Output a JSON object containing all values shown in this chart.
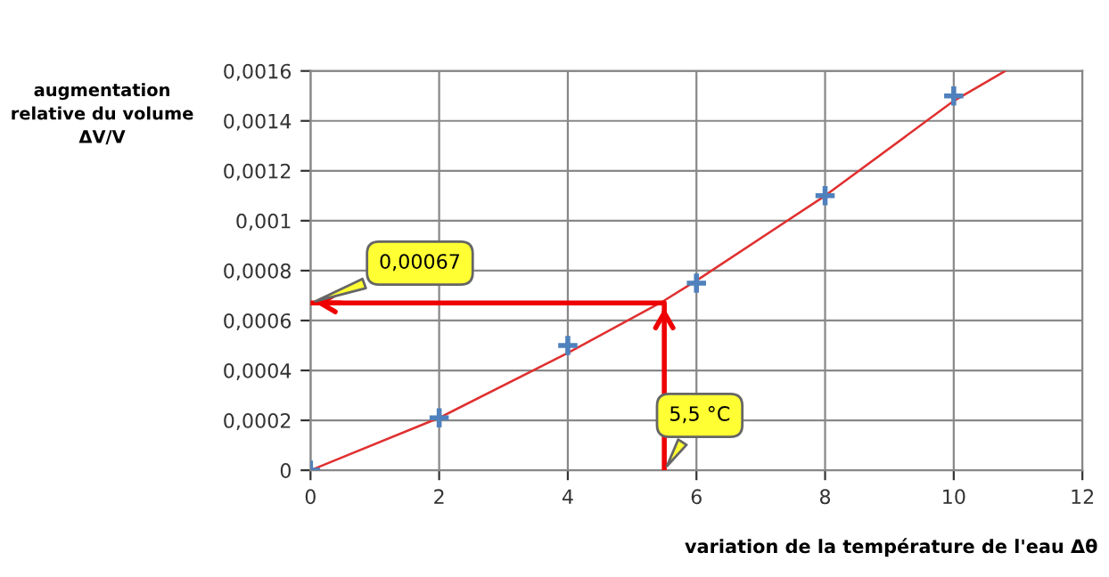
{
  "chart_data": {
    "type": "scatter",
    "xlabel": "variation de la température de l'eau Δθ",
    "ylabel": "augmentation\nrelative du volume\nΔV/V",
    "series": [
      {
        "color": "#4f81bd",
        "marker": "cross",
        "x": [
          0,
          2,
          4,
          6,
          8,
          10
        ],
        "values": [
          0,
          0.00021,
          0.0005,
          0.00075,
          0.0011,
          0.0015
        ]
      },
      {
        "type": "line",
        "color": "#e03030",
        "marker": "none",
        "x": [
          0,
          2,
          4,
          5.5,
          6,
          8,
          10,
          10.8
        ],
        "values": [
          0,
          0.00021,
          0.00047,
          0.00068,
          0.00076,
          0.0011,
          0.00148,
          0.0016
        ]
      },
      {
        "type": "line",
        "color": "#ee0000",
        "marker": "none",
        "x": [
          5.5,
          5.5,
          0
        ],
        "values": [
          0,
          0.00067,
          0.00067
        ]
      }
    ],
    "xlim": [
      0,
      12
    ],
    "xticks": [
      0,
      2,
      4,
      6,
      8,
      10,
      12
    ],
    "ylim": [
      0,
      0.0016
    ],
    "yticks": [
      {
        "value": 0,
        "label": "0"
      },
      {
        "value": 0.0002,
        "label": "0,0002"
      },
      {
        "value": 0.0004,
        "label": "0,0004"
      },
      {
        "value": 0.0006,
        "label": "0,0006"
      },
      {
        "value": 0.0008,
        "label": "0,0008"
      },
      {
        "value": 0.001,
        "label": "0,001"
      },
      {
        "value": 0.0012,
        "label": "0,0012"
      },
      {
        "value": 0.0014,
        "label": "0,0014"
      },
      {
        "value": 0.0016,
        "label": "0,0016"
      }
    ],
    "grid": true,
    "annotations": [
      "5,5 °C",
      "0,00067"
    ]
  }
}
